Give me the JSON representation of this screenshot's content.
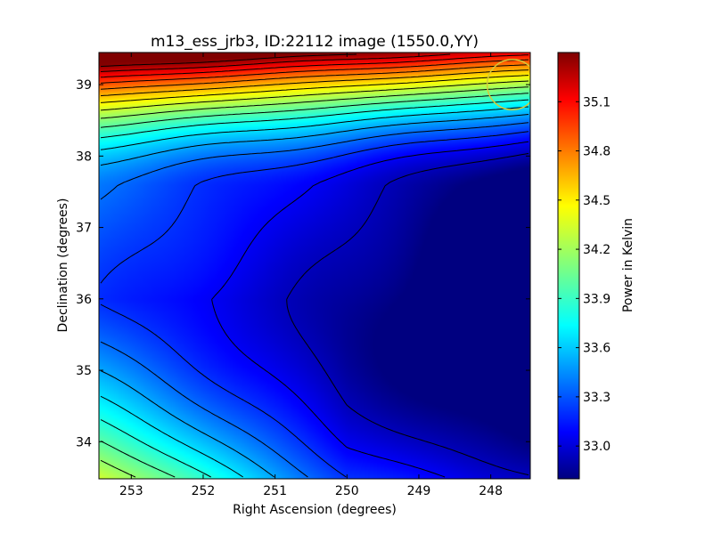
{
  "chart_data": {
    "type": "heatmap",
    "title": "m13_ess_jrb3, ID:22112 image (1550.0,YY)",
    "xlabel": "Right Ascension (degrees)",
    "ylabel": "Declination (degrees)",
    "xlim": [
      253.45,
      247.45
    ],
    "ylim": [
      33.48,
      39.45
    ],
    "x_ticks": [
      253,
      252,
      251,
      250,
      249,
      248
    ],
    "y_ticks": [
      34,
      35,
      36,
      37,
      38,
      39
    ],
    "colorbar": {
      "label": "Power in Kelvin",
      "range": [
        32.8,
        35.4
      ],
      "ticks": [
        33.0,
        33.3,
        33.6,
        33.9,
        34.2,
        34.5,
        34.8,
        35.1
      ],
      "colormap": "jet"
    },
    "field": {
      "min_value": 32.85,
      "min_location": [
        247.7,
        36.9
      ],
      "max_value": 35.35,
      "max_location": [
        253.4,
        39.45
      ],
      "description_levels": "temperature increases steeply toward top (north) and gently toward bottom-left"
    },
    "marker": {
      "type": "circle",
      "ra": 247.7,
      "dec": 39.0,
      "radius_deg": 0.35,
      "color": "#d4c93a"
    }
  },
  "colors": {
    "contour_line": "#000000"
  }
}
